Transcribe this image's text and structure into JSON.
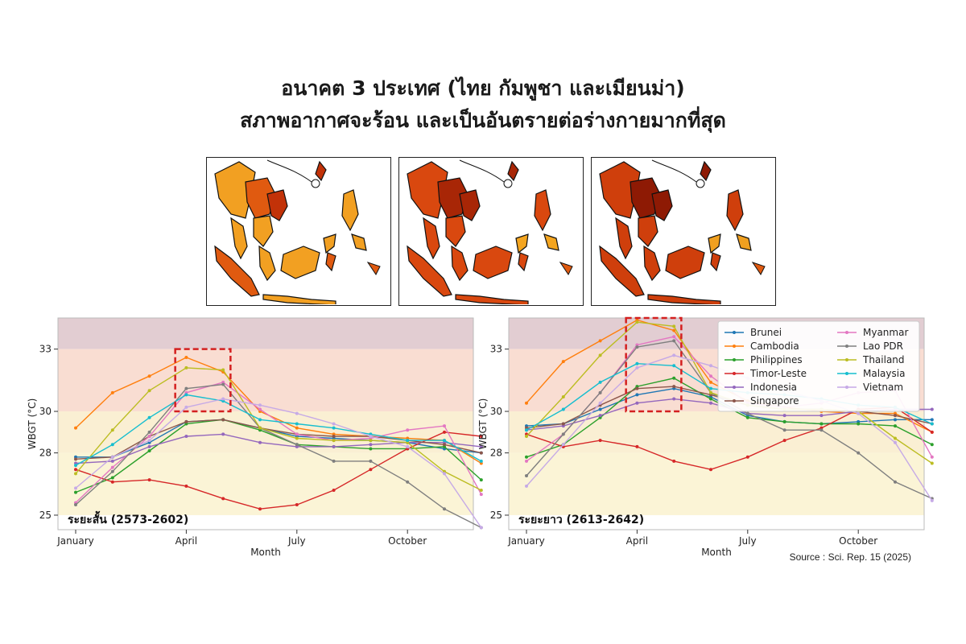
{
  "title": {
    "line1": "อนาคต 3 ประเทศ (ไทย กัมพูชา และเมียนม่า)",
    "line2": "สภาพอากาศจะร้อน และเป็นอันตรายต่อร่างกายมากที่สุด"
  },
  "maps": [
    {
      "name": "map-1"
    },
    {
      "name": "map-2"
    },
    {
      "name": "map-3"
    }
  ],
  "source": "Source : Sci. Rep. 15 (2025)",
  "colors": {
    "band_danger": "#e2cdd2",
    "band_extreme": "#f9ddd2",
    "band_caution": "#faefd3",
    "band_safe": "#fbf4d6",
    "highlight_box": "#d42020"
  },
  "chart_data": [
    {
      "type": "line",
      "period_label": "ระยะสั้น (2573-2602)",
      "xlabel": "Month",
      "ylabel": "WBGT (°C)",
      "x_tick_labels": [
        "January",
        "April",
        "July",
        "October"
      ],
      "x_tick_months": [
        1,
        4,
        7,
        10
      ],
      "yticks": [
        25,
        28,
        30,
        33
      ],
      "ylim": [
        24.3,
        34.5
      ],
      "highlight_months": [
        3.7,
        5.2
      ],
      "highlight_y": [
        30,
        33
      ],
      "series": [
        {
          "name": "Brunei",
          "color": "#1f77b4",
          "values": [
            27.8,
            27.8,
            28.5,
            29.5,
            29.6,
            29.2,
            28.8,
            28.7,
            28.6,
            28.5,
            28.2,
            28.0
          ]
        },
        {
          "name": "Cambodia",
          "color": "#ff7f0e",
          "values": [
            29.2,
            30.9,
            31.7,
            32.6,
            31.9,
            30.0,
            29.2,
            28.9,
            28.8,
            28.7,
            28.6,
            27.5
          ]
        },
        {
          "name": "Philippines",
          "color": "#2ca02c",
          "values": [
            26.1,
            26.8,
            28.1,
            29.4,
            29.6,
            29.1,
            28.4,
            28.3,
            28.2,
            28.2,
            28.3,
            26.7
          ]
        },
        {
          "name": "Timor-Leste",
          "color": "#d62728",
          "values": [
            27.2,
            26.6,
            26.7,
            26.4,
            25.8,
            25.3,
            25.5,
            26.2,
            27.2,
            28.2,
            29.0,
            28.8
          ]
        },
        {
          "name": "Indonesia",
          "color": "#9467bd",
          "values": [
            27.5,
            27.6,
            28.3,
            28.8,
            28.9,
            28.5,
            28.3,
            28.3,
            28.4,
            28.5,
            28.5,
            28.3
          ]
        },
        {
          "name": "Singapore",
          "color": "#8c564b",
          "values": [
            27.7,
            27.8,
            28.8,
            29.5,
            29.6,
            29.2,
            28.9,
            28.8,
            28.8,
            28.6,
            28.4,
            28.0
          ]
        },
        {
          "name": "Myanmar",
          "color": "#e377c2",
          "values": [
            25.6,
            27.3,
            28.8,
            30.9,
            31.4,
            30.1,
            28.9,
            28.6,
            28.7,
            29.1,
            29.3,
            26.0
          ]
        },
        {
          "name": "Lao PDR",
          "color": "#7f7f7f",
          "values": [
            25.5,
            27.1,
            29.0,
            31.1,
            31.3,
            29.2,
            28.4,
            27.6,
            27.6,
            26.6,
            25.3,
            24.4
          ]
        },
        {
          "name": "Thailand",
          "color": "#bcbd22",
          "values": [
            27.0,
            29.1,
            31.0,
            32.1,
            32.0,
            29.2,
            28.7,
            28.6,
            28.6,
            28.5,
            27.1,
            26.2
          ]
        },
        {
          "name": "Malaysia",
          "color": "#17becf",
          "values": [
            27.4,
            28.4,
            29.7,
            30.8,
            30.5,
            29.6,
            29.4,
            29.2,
            28.9,
            28.6,
            28.6,
            27.6
          ]
        },
        {
          "name": "Vietnam",
          "color": "#c6aae6",
          "values": [
            26.3,
            27.8,
            28.6,
            30.2,
            30.6,
            30.3,
            29.9,
            29.4,
            28.8,
            28.3,
            27.0,
            24.4
          ]
        }
      ]
    },
    {
      "type": "line",
      "period_label": "ระยะยาว (2613-2642)",
      "xlabel": "Month",
      "ylabel": "WBGT (°C)",
      "x_tick_labels": [
        "January",
        "April",
        "July",
        "October"
      ],
      "x_tick_months": [
        1,
        4,
        7,
        10
      ],
      "yticks": [
        25,
        28,
        30,
        33
      ],
      "ylim": [
        24.3,
        34.5
      ],
      "highlight_months": [
        3.7,
        5.2
      ],
      "highlight_y": [
        30,
        34.5
      ],
      "series": [
        {
          "name": "Brunei",
          "color": "#1f77b4",
          "values": [
            29.3,
            29.4,
            30.1,
            30.8,
            31.1,
            30.7,
            29.8,
            29.5,
            29.4,
            29.5,
            29.6,
            29.6
          ]
        },
        {
          "name": "Cambodia",
          "color": "#ff7f0e",
          "values": [
            30.4,
            32.4,
            33.4,
            34.4,
            33.9,
            31.4,
            30.5,
            30.2,
            30.0,
            29.9,
            29.9,
            29.0
          ]
        },
        {
          "name": "Philippines",
          "color": "#2ca02c",
          "values": [
            27.8,
            28.4,
            29.7,
            31.2,
            31.6,
            30.6,
            29.7,
            29.5,
            29.4,
            29.4,
            29.3,
            28.4
          ]
        },
        {
          "name": "Timor-Leste",
          "color": "#d62728",
          "values": [
            28.9,
            28.3,
            28.6,
            28.3,
            27.6,
            27.2,
            27.8,
            28.6,
            29.2,
            30.1,
            30.2,
            29.0
          ]
        },
        {
          "name": "Indonesia",
          "color": "#9467bd",
          "values": [
            29.1,
            29.3,
            29.8,
            30.4,
            30.6,
            30.4,
            29.9,
            29.8,
            29.8,
            30.0,
            30.1,
            30.1
          ]
        },
        {
          "name": "Singapore",
          "color": "#8c564b",
          "values": [
            29.2,
            29.4,
            30.3,
            31.1,
            31.2,
            30.8,
            30.3,
            30.1,
            30.1,
            30.0,
            29.8,
            29.4
          ]
        },
        {
          "name": "Myanmar",
          "color": "#e377c2",
          "values": [
            27.6,
            28.9,
            30.9,
            33.2,
            33.6,
            31.7,
            30.4,
            30.2,
            30.4,
            30.9,
            31.0,
            27.8
          ]
        },
        {
          "name": "Lao PDR",
          "color": "#7f7f7f",
          "values": [
            26.9,
            28.9,
            30.9,
            33.1,
            33.4,
            30.9,
            29.9,
            29.1,
            29.1,
            28.0,
            26.6,
            25.8
          ]
        },
        {
          "name": "Thailand",
          "color": "#bcbd22",
          "values": [
            28.8,
            30.7,
            32.7,
            34.3,
            34.1,
            30.9,
            30.3,
            30.1,
            30.1,
            30.0,
            28.7,
            27.5
          ]
        },
        {
          "name": "Malaysia",
          "color": "#17becf",
          "values": [
            29.1,
            30.1,
            31.4,
            32.3,
            32.2,
            31.1,
            30.9,
            30.8,
            30.6,
            30.3,
            30.2,
            29.4
          ]
        },
        {
          "name": "Vietnam",
          "color": "#c6aae6",
          "values": [
            26.4,
            28.4,
            30.4,
            32.1,
            32.7,
            32.2,
            31.6,
            31.0,
            30.5,
            29.9,
            28.5,
            25.7
          ]
        }
      ]
    }
  ]
}
